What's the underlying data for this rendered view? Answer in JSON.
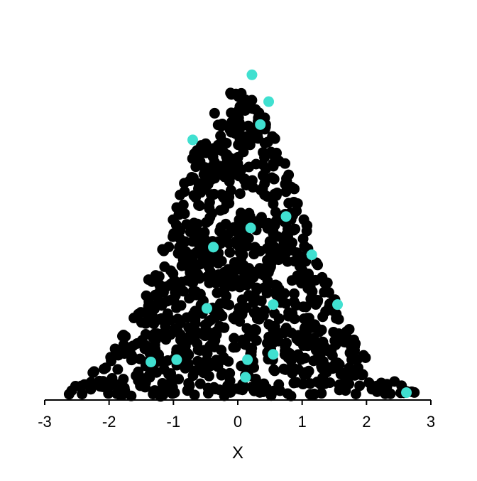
{
  "chart_data": {
    "type": "scatter",
    "title": "",
    "xlabel": "X",
    "ylabel": "",
    "xlim": [
      -3,
      3
    ],
    "x_ticks": [
      "-3",
      "-2",
      "-1",
      "0",
      "1",
      "2",
      "3"
    ],
    "y_axis_visible": false,
    "grid": false,
    "legend": "none",
    "colors": {
      "primary_points": "#000000",
      "highlight_points": "#40e0d0",
      "axis": "#000000"
    },
    "distribution": "normal",
    "mean": 0,
    "sd": 1,
    "approx_point_count": 1000,
    "highlighted_points": [
      {
        "x": 0.22,
        "y": 0.42
      },
      {
        "x": 0.48,
        "y": 0.385
      },
      {
        "x": 0.35,
        "y": 0.355
      },
      {
        "x": -0.7,
        "y": 0.335
      },
      {
        "x": 0.75,
        "y": 0.235
      },
      {
        "x": 0.2,
        "y": 0.22
      },
      {
        "x": -0.38,
        "y": 0.195
      },
      {
        "x": 1.15,
        "y": 0.185
      },
      {
        "x": 0.55,
        "y": 0.12
      },
      {
        "x": -0.48,
        "y": 0.115
      },
      {
        "x": 1.55,
        "y": 0.12
      },
      {
        "x": -1.35,
        "y": 0.045
      },
      {
        "x": -0.95,
        "y": 0.048
      },
      {
        "x": 0.15,
        "y": 0.048
      },
      {
        "x": 0.55,
        "y": 0.055
      },
      {
        "x": 0.12,
        "y": 0.025
      },
      {
        "x": 2.62,
        "y": 0.005
      }
    ]
  }
}
